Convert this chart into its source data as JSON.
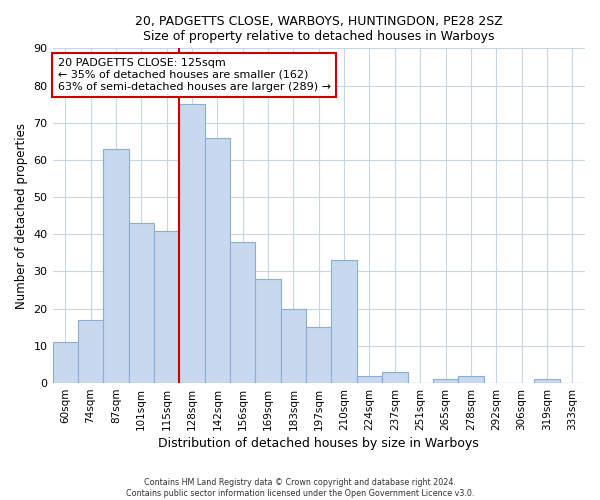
{
  "title1": "20, PADGETTS CLOSE, WARBOYS, HUNTINGDON, PE28 2SZ",
  "title2": "Size of property relative to detached houses in Warboys",
  "xlabel": "Distribution of detached houses by size in Warboys",
  "ylabel": "Number of detached properties",
  "categories": [
    "60sqm",
    "74sqm",
    "87sqm",
    "101sqm",
    "115sqm",
    "128sqm",
    "142sqm",
    "156sqm",
    "169sqm",
    "183sqm",
    "197sqm",
    "210sqm",
    "224sqm",
    "237sqm",
    "251sqm",
    "265sqm",
    "278sqm",
    "292sqm",
    "306sqm",
    "319sqm",
    "333sqm"
  ],
  "values": [
    11,
    17,
    63,
    43,
    41,
    75,
    66,
    38,
    28,
    20,
    15,
    33,
    2,
    3,
    0,
    1,
    2,
    0,
    0,
    1,
    0
  ],
  "bar_color": "#c8d8ee",
  "bar_edge_color": "#8aafd4",
  "vline_x": 4.5,
  "vline_color": "#cc0000",
  "annotation_line1": "20 PADGETTS CLOSE: 125sqm",
  "annotation_line2": "← 35% of detached houses are smaller (162)",
  "annotation_line3": "63% of semi-detached houses are larger (289) →",
  "annotation_box_color": "#ffffff",
  "annotation_box_edge": "#cc0000",
  "ylim": [
    0,
    90
  ],
  "yticks": [
    0,
    10,
    20,
    30,
    40,
    50,
    60,
    70,
    80,
    90
  ],
  "footer1": "Contains HM Land Registry data © Crown copyright and database right 2024.",
  "footer2": "Contains public sector information licensed under the Open Government Licence v3.0.",
  "bg_color": "#ffffff",
  "plot_bg_color": "#ffffff",
  "grid_color": "#c8d4e8"
}
